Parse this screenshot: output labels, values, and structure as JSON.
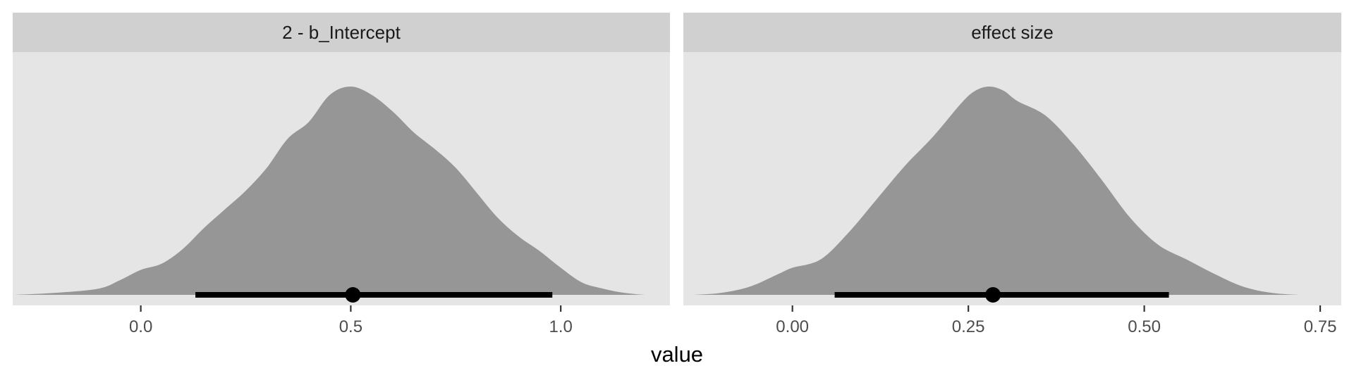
{
  "colors": {
    "panel_background": "#e5e5e5",
    "strip_background": "#d0d0d0",
    "density_fill": "#969696",
    "interval": "#000000",
    "tick_text": "#4d4d4d"
  },
  "chart_data": {
    "type": "area",
    "xlabel": "value",
    "grid": false,
    "legend": "none",
    "panels": [
      {
        "title": "2 - b_Intercept",
        "xlim": [
          -0.305,
          1.26
        ],
        "ticks": [
          0.0,
          0.5,
          1.0
        ],
        "tick_labels": [
          "0.0",
          "0.5",
          "1.0"
        ],
        "density": {
          "x": [
            -0.3,
            -0.2,
            -0.1,
            -0.05,
            0.0,
            0.05,
            0.1,
            0.15,
            0.2,
            0.25,
            0.3,
            0.35,
            0.4,
            0.45,
            0.5,
            0.55,
            0.6,
            0.65,
            0.7,
            0.75,
            0.8,
            0.85,
            0.9,
            0.95,
            1.0,
            1.05,
            1.1,
            1.15,
            1.2,
            1.23
          ],
          "y": [
            0.0,
            0.01,
            0.03,
            0.07,
            0.12,
            0.15,
            0.22,
            0.32,
            0.41,
            0.5,
            0.61,
            0.75,
            0.83,
            0.96,
            1.0,
            0.96,
            0.88,
            0.78,
            0.7,
            0.61,
            0.49,
            0.37,
            0.28,
            0.21,
            0.13,
            0.06,
            0.03,
            0.01,
            0.0,
            0.0
          ]
        },
        "interval": [
          0.13,
          0.98
        ],
        "point": 0.505
      },
      {
        "title": "effect size",
        "xlim": [
          -0.155,
          0.78
        ],
        "ticks": [
          0.0,
          0.25,
          0.5,
          0.75
        ],
        "tick_labels": [
          "0.00",
          "0.25",
          "0.50",
          "0.75"
        ],
        "density": {
          "x": [
            -0.14,
            -0.1,
            -0.06,
            -0.02,
            0.0,
            0.04,
            0.08,
            0.12,
            0.16,
            0.2,
            0.24,
            0.26,
            0.28,
            0.3,
            0.32,
            0.36,
            0.4,
            0.44,
            0.48,
            0.52,
            0.56,
            0.6,
            0.64,
            0.68,
            0.72,
            0.74
          ],
          "y": [
            0.0,
            0.01,
            0.04,
            0.1,
            0.13,
            0.17,
            0.3,
            0.46,
            0.62,
            0.76,
            0.92,
            0.98,
            1.0,
            0.98,
            0.93,
            0.86,
            0.72,
            0.55,
            0.37,
            0.24,
            0.17,
            0.1,
            0.04,
            0.01,
            0.0,
            0.0
          ]
        },
        "interval": [
          0.06,
          0.535
        ],
        "point": 0.285
      }
    ]
  }
}
